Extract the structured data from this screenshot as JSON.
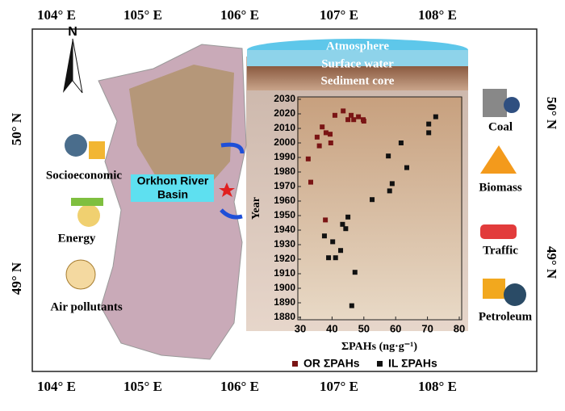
{
  "map": {
    "top_lon": [
      "104° E",
      "105° E",
      "106° E",
      "107° E",
      "108° E"
    ],
    "bottom_lon": [
      "104° E",
      "105° E",
      "106° E",
      "107° E",
      "108° E"
    ],
    "left_lat": [
      "50° N",
      "49° N"
    ],
    "right_lat": [
      "50° N",
      "49° N"
    ],
    "north": "N",
    "basin": [
      "Orkhon River",
      "Basin"
    ],
    "layers": [
      "Atmosphere",
      "Surface water",
      "Sediment core"
    ],
    "drivers": [
      "Socioeconomic",
      "Energy",
      "Air pollutants"
    ],
    "sources": [
      "Coal",
      "Biomass",
      "Traffic",
      "Petroleum"
    ]
  },
  "chart_data": {
    "type": "scatter",
    "xlabel": "ΣPAHs (ng·g⁻¹)",
    "ylabel": "Year",
    "xlim": [
      30,
      80
    ],
    "xticks": [
      30,
      40,
      50,
      60,
      70,
      80
    ],
    "ylim": [
      1880,
      2030
    ],
    "yticks": [
      1880,
      1890,
      1900,
      1910,
      1920,
      1930,
      1940,
      1950,
      1960,
      1970,
      1980,
      1990,
      2000,
      2010,
      2020,
      2030
    ],
    "series": [
      {
        "name": "OR ΣPAHs",
        "color": "#7a1414",
        "x": [
          32.5,
          33.3,
          35.3,
          36,
          36.9,
          38.1,
          39.4,
          39.6,
          40.9,
          43.5,
          45,
          46,
          46.8,
          48.3,
          49.8,
          50,
          37.9
        ],
        "y": [
          1989,
          1973,
          2004,
          1998,
          2011,
          2007,
          2006,
          2000,
          2019,
          2022,
          2016,
          2019,
          2016,
          2018,
          2016,
          2015,
          1947
        ]
      },
      {
        "name": "IL ΣPAHs",
        "color": "#111111",
        "x": [
          72.6,
          70.4,
          70.4,
          61.7,
          57.7,
          63.5,
          58.9,
          58.1,
          52.6,
          45,
          43.3,
          44.3,
          37.6,
          40.2,
          42.7,
          38.9,
          41.1,
          47.2,
          46.2
        ],
        "y": [
          2018,
          2013,
          2007,
          2000,
          1991,
          1983,
          1972,
          1967,
          1961,
          1949,
          1944,
          1941,
          1936,
          1932,
          1926,
          1921,
          1921,
          1911,
          1888
        ]
      }
    ]
  }
}
